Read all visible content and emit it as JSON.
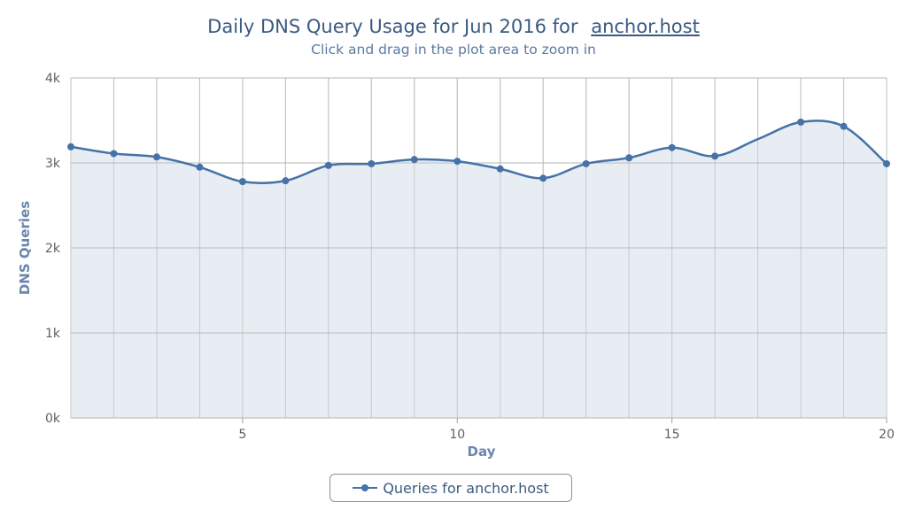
{
  "title": {
    "prefix": "Daily DNS Query Usage for Jun 2016 for",
    "host": "anchor.host"
  },
  "subtitle": "Click and drag in the plot area to zoom in",
  "colors": {
    "series": "#4572a7",
    "area_fill": "#e4e9f1",
    "grid": "#c0c0c0",
    "title": "#3a5a82",
    "axis_title": "#6a86ad"
  },
  "chart_data": {
    "type": "area",
    "xlabel": "Day",
    "ylabel": "DNS Queries",
    "xlim": [
      1,
      20
    ],
    "ylim": [
      0,
      4000
    ],
    "x_ticks": [
      5,
      10,
      15,
      20
    ],
    "y_ticks": [
      0,
      1000,
      2000,
      3000,
      4000
    ],
    "y_tick_labels": [
      "0k",
      "1k",
      "2k",
      "3k",
      "4k"
    ],
    "grid": true,
    "legend_position": "bottom-center",
    "series": [
      {
        "name": "Queries for anchor.host",
        "x": [
          1,
          2,
          3,
          4,
          5,
          6,
          7,
          8,
          9,
          10,
          11,
          12,
          13,
          14,
          15,
          16,
          17,
          18,
          19,
          20
        ],
        "values": [
          3190,
          3110,
          3070,
          2950,
          2780,
          2790,
          2970,
          2990,
          3040,
          3020,
          2930,
          2820,
          2990,
          3060,
          3180,
          3080,
          null,
          3480,
          3430,
          2990
        ]
      }
    ]
  }
}
